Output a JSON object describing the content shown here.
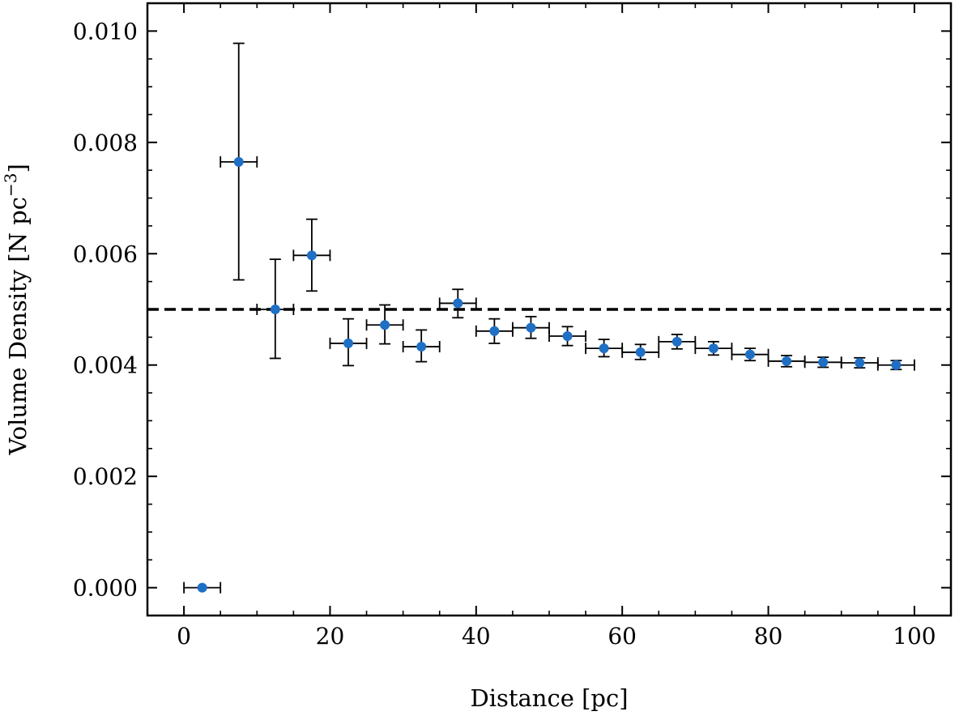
{
  "chart_data": {
    "type": "scatter",
    "title": "",
    "xlabel": "Distance [pc]",
    "ylabel": "Volume Density [N pc",
    "ylabel_superscript": "−3",
    "ylabel_suffix": "]",
    "xlim": [
      -5,
      105
    ],
    "ylim": [
      -0.0005,
      0.0105
    ],
    "x_ticks": [
      0,
      20,
      40,
      60,
      80,
      100
    ],
    "x_tick_labels": [
      "0",
      "20",
      "40",
      "60",
      "80",
      "100"
    ],
    "y_ticks": [
      0.0,
      0.002,
      0.004,
      0.006,
      0.008,
      0.01
    ],
    "y_tick_labels": [
      "0.000",
      "0.002",
      "0.004",
      "0.006",
      "0.008",
      "0.010"
    ],
    "reference_line": {
      "y": 0.005,
      "style": "dashed",
      "color": "#000000"
    },
    "marker_color": "#1f6fc5",
    "series": [
      {
        "name": "Volume Density",
        "points": [
          {
            "x": 2.5,
            "y": 0.0,
            "xerr": 2.5,
            "yerr_low": 0.0,
            "yerr_high": 0.0
          },
          {
            "x": 7.5,
            "y": 0.00765,
            "xerr": 2.5,
            "yerr_low": 0.00212,
            "yerr_high": 0.00213
          },
          {
            "x": 12.5,
            "y": 0.005,
            "xerr": 2.5,
            "yerr_low": 0.00088,
            "yerr_high": 0.0009
          },
          {
            "x": 17.5,
            "y": 0.00597,
            "xerr": 2.5,
            "yerr_low": 0.00064,
            "yerr_high": 0.00065
          },
          {
            "x": 22.5,
            "y": 0.00439,
            "xerr": 2.5,
            "yerr_low": 0.0004,
            "yerr_high": 0.00044
          },
          {
            "x": 27.5,
            "y": 0.00472,
            "xerr": 2.5,
            "yerr_low": 0.00034,
            "yerr_high": 0.00036
          },
          {
            "x": 32.5,
            "y": 0.00433,
            "xerr": 2.5,
            "yerr_low": 0.00027,
            "yerr_high": 0.0003
          },
          {
            "x": 37.5,
            "y": 0.00511,
            "xerr": 2.5,
            "yerr_low": 0.00026,
            "yerr_high": 0.00025
          },
          {
            "x": 42.5,
            "y": 0.00461,
            "xerr": 2.5,
            "yerr_low": 0.00022,
            "yerr_high": 0.00022
          },
          {
            "x": 47.5,
            "y": 0.00467,
            "xerr": 2.5,
            "yerr_low": 0.00019,
            "yerr_high": 0.0002
          },
          {
            "x": 52.5,
            "y": 0.00452,
            "xerr": 2.5,
            "yerr_low": 0.00017,
            "yerr_high": 0.00017
          },
          {
            "x": 57.5,
            "y": 0.0043,
            "xerr": 2.5,
            "yerr_low": 0.00015,
            "yerr_high": 0.00016
          },
          {
            "x": 62.5,
            "y": 0.00423,
            "xerr": 2.5,
            "yerr_low": 0.00013,
            "yerr_high": 0.00014
          },
          {
            "x": 67.5,
            "y": 0.00442,
            "xerr": 2.5,
            "yerr_low": 0.00013,
            "yerr_high": 0.00013
          },
          {
            "x": 72.5,
            "y": 0.0043,
            "xerr": 2.5,
            "yerr_low": 0.00012,
            "yerr_high": 0.00012
          },
          {
            "x": 77.5,
            "y": 0.00419,
            "xerr": 2.5,
            "yerr_low": 0.00011,
            "yerr_high": 0.00011
          },
          {
            "x": 82.5,
            "y": 0.00407,
            "xerr": 2.5,
            "yerr_low": 0.0001,
            "yerr_high": 0.0001
          },
          {
            "x": 87.5,
            "y": 0.00405,
            "xerr": 2.5,
            "yerr_low": 9e-05,
            "yerr_high": 9e-05
          },
          {
            "x": 92.5,
            "y": 0.00404,
            "xerr": 2.5,
            "yerr_low": 9e-05,
            "yerr_high": 9e-05
          },
          {
            "x": 97.5,
            "y": 0.004,
            "xerr": 2.5,
            "yerr_low": 8e-05,
            "yerr_high": 8e-05
          }
        ]
      }
    ]
  }
}
